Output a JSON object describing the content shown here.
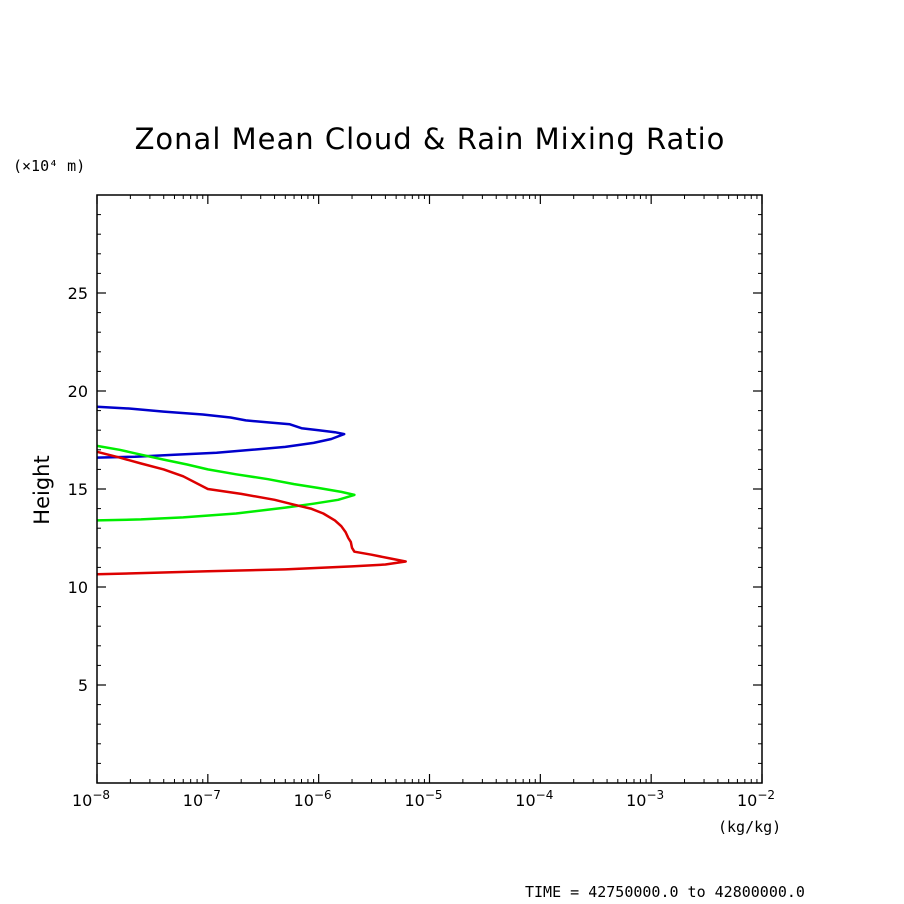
{
  "chart_data": {
    "type": "line",
    "title": "Zonal Mean Cloud & Rain Mixing Ratio",
    "ylabel": "Height",
    "y_unit": "(×10⁴ m)",
    "x_unit": "(kg/kg)",
    "xscale": "log",
    "xlim": [
      1e-08,
      0.01
    ],
    "ylim": [
      0,
      30
    ],
    "x_ticks": [
      {
        "value": 1e-08,
        "base": "10",
        "exp": "−8"
      },
      {
        "value": 1e-07,
        "base": "10",
        "exp": "−7"
      },
      {
        "value": 1e-06,
        "base": "10",
        "exp": "−6"
      },
      {
        "value": 1e-05,
        "base": "10",
        "exp": "−5"
      },
      {
        "value": 0.0001,
        "base": "10",
        "exp": "−4"
      },
      {
        "value": 0.001,
        "base": "10",
        "exp": "−3"
      },
      {
        "value": 0.01,
        "base": "10",
        "exp": "−2"
      }
    ],
    "y_ticks": [
      {
        "value": 5,
        "label": "5"
      },
      {
        "value": 10,
        "label": "10"
      },
      {
        "value": 15,
        "label": "15"
      },
      {
        "value": 20,
        "label": "20"
      },
      {
        "value": 25,
        "label": "25"
      }
    ],
    "grid": false,
    "legend": "none",
    "series": [
      {
        "color": "#0000cc",
        "points": [
          [
            1e-08,
            19.2
          ],
          [
            2e-08,
            19.1
          ],
          [
            4e-08,
            18.95
          ],
          [
            9e-08,
            18.8
          ],
          [
            1.6e-07,
            18.65
          ],
          [
            2.2e-07,
            18.5
          ],
          [
            3.5e-07,
            18.4
          ],
          [
            5.5e-07,
            18.3
          ],
          [
            7e-07,
            18.1
          ],
          [
            1e-06,
            18.0
          ],
          [
            1.4e-06,
            17.9
          ],
          [
            1.7e-06,
            17.8
          ],
          [
            1.3e-06,
            17.55
          ],
          [
            9e-07,
            17.35
          ],
          [
            5e-07,
            17.15
          ],
          [
            2.5e-07,
            17.0
          ],
          [
            1.2e-07,
            16.85
          ],
          [
            5e-08,
            16.75
          ],
          [
            2.2e-08,
            16.65
          ],
          [
            1e-08,
            16.6
          ]
        ]
      },
      {
        "color": "#00ee00",
        "points": [
          [
            1e-08,
            17.2
          ],
          [
            1.6e-08,
            17.0
          ],
          [
            2.5e-08,
            16.75
          ],
          [
            4e-08,
            16.5
          ],
          [
            6.5e-08,
            16.25
          ],
          [
            1e-07,
            16.0
          ],
          [
            1.8e-07,
            15.75
          ],
          [
            3.5e-07,
            15.5
          ],
          [
            6e-07,
            15.25
          ],
          [
            1e-06,
            15.05
          ],
          [
            1.6e-06,
            14.85
          ],
          [
            2.1e-06,
            14.7
          ],
          [
            1.5e-06,
            14.45
          ],
          [
            9e-07,
            14.25
          ],
          [
            5e-07,
            14.05
          ],
          [
            1.8e-07,
            13.75
          ],
          [
            6e-08,
            13.55
          ],
          [
            2.5e-08,
            13.45
          ],
          [
            1e-08,
            13.4
          ]
        ]
      },
      {
        "color": "#dd0000",
        "points": [
          [
            1e-08,
            16.9
          ],
          [
            1.6e-08,
            16.6
          ],
          [
            2.5e-08,
            16.3
          ],
          [
            4e-08,
            16.0
          ],
          [
            6e-08,
            15.65
          ],
          [
            1e-07,
            15.0
          ],
          [
            2e-07,
            14.75
          ],
          [
            4e-07,
            14.45
          ],
          [
            6e-07,
            14.2
          ],
          [
            8.5e-07,
            14.0
          ],
          [
            1.1e-06,
            13.75
          ],
          [
            1.4e-06,
            13.4
          ],
          [
            1.6e-06,
            13.1
          ],
          [
            1.75e-06,
            12.8
          ],
          [
            1.85e-06,
            12.5
          ],
          [
            1.95e-06,
            12.3
          ],
          [
            2e-06,
            12.0
          ],
          [
            2.1e-06,
            11.8
          ],
          [
            3e-06,
            11.65
          ],
          [
            4.5e-06,
            11.45
          ],
          [
            6.1e-06,
            11.3
          ],
          [
            4e-06,
            11.15
          ],
          [
            2e-06,
            11.05
          ],
          [
            5e-07,
            10.9
          ],
          [
            1e-07,
            10.8
          ],
          [
            1e-08,
            10.65
          ]
        ]
      }
    ]
  },
  "footer": {
    "time_range": "TIME = 42750000.0 to 42800000.0"
  }
}
